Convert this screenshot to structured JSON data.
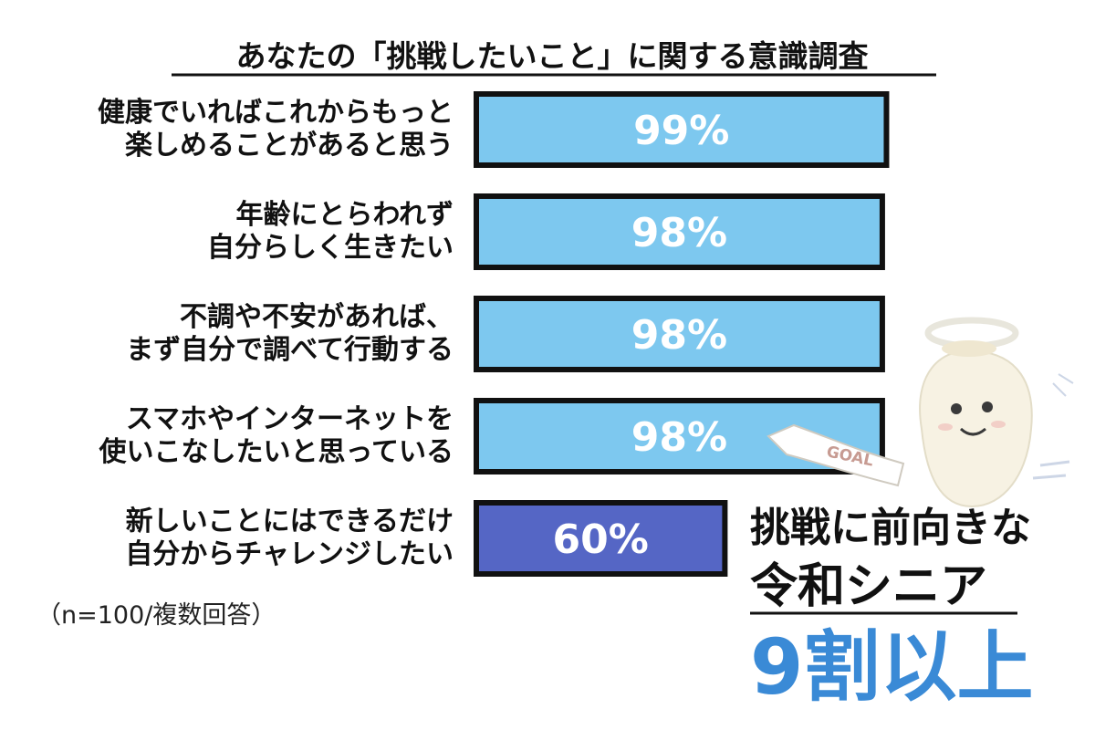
{
  "chart_data": {
    "type": "bar",
    "orientation": "horizontal",
    "title": "あなたの「挑戦したいこと」に関する意識調査",
    "categories": [
      [
        "健康でいればこれからもっと",
        "楽しめることがあると思う"
      ],
      [
        "年齢にとらわれず",
        "自分らしく生きたい"
      ],
      [
        "不調や不安があれば、",
        "まず自分で調べて行動する"
      ],
      [
        "スマホやインターネットを",
        "使いこなしたいと思っている"
      ],
      [
        "新しいことにはできるだけ",
        "自分からチャレンジしたい"
      ]
    ],
    "values": [
      99,
      98,
      98,
      98,
      60
    ],
    "value_labels": [
      "99%",
      "98%",
      "98%",
      "98%",
      "60%"
    ],
    "xlim": [
      0,
      100
    ],
    "grid": false,
    "colors": [
      "#7dc8ef",
      "#7dc8ef",
      "#7dc8ef",
      "#7dc8ef",
      "#5566c5"
    ],
    "note": "（n=100/複数回答）"
  },
  "callout": {
    "line1": "挑戦に前向きな",
    "line2": "令和シニア",
    "line3": "9割以上"
  },
  "mascot": {
    "icon": "angel-mascot-icon",
    "banner_text": "GOAL"
  }
}
